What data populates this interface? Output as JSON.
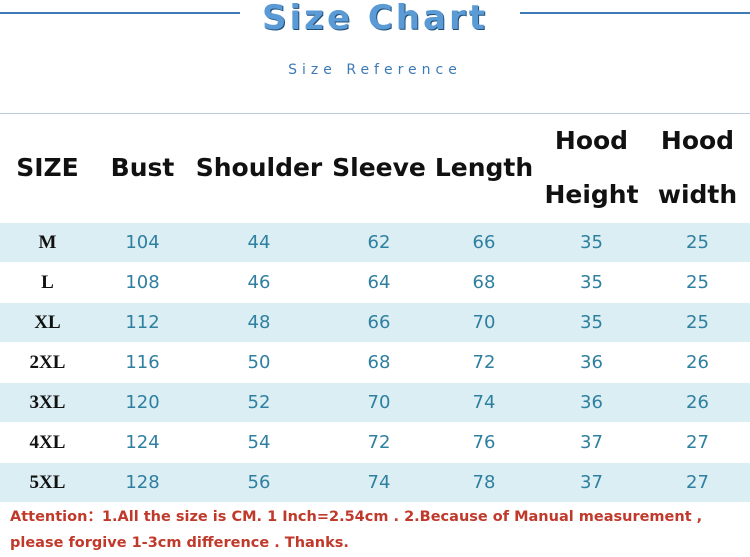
{
  "header": {
    "title": "Size Chart",
    "subtitle": "Size Reference"
  },
  "table": {
    "columns": [
      "SIZE",
      "Bust",
      "Shoulder",
      "Sleeve",
      "Length",
      "Hood Height",
      "Hood width"
    ],
    "rows": [
      [
        "M",
        104,
        44,
        62,
        66,
        35,
        25
      ],
      [
        "L",
        108,
        46,
        64,
        68,
        35,
        25
      ],
      [
        "XL",
        112,
        48,
        66,
        70,
        35,
        25
      ],
      [
        "2XL",
        116,
        50,
        68,
        72,
        36,
        26
      ],
      [
        "3XL",
        120,
        52,
        70,
        74,
        36,
        26
      ],
      [
        "4XL",
        124,
        54,
        72,
        76,
        37,
        27
      ],
      [
        "5XL",
        128,
        56,
        74,
        78,
        37,
        27
      ]
    ]
  },
  "note": "Attention：1.All the size is CM. 1 Inch=2.54cm . 2.Because of Manual measurement , please forgive 1-3cm difference . Thanks."
}
